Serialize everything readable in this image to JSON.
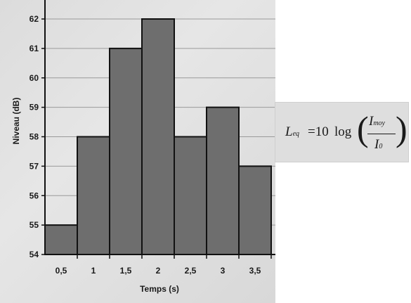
{
  "chart_data": {
    "type": "bar",
    "categories": [
      "0,5",
      "1",
      "1,5",
      "2",
      "2,5",
      "3",
      "3,5"
    ],
    "values": [
      55,
      58,
      61,
      62,
      58,
      59,
      57
    ],
    "xlabel": "Temps (s)",
    "ylabel": "Niveau (dB)",
    "ylim": [
      54,
      62
    ],
    "yticks": [
      "54",
      "55",
      "56",
      "57",
      "58",
      "59",
      "60",
      "61",
      "62"
    ],
    "grid": true,
    "bar_color": "#6e6e6e",
    "bar_edge_color": "#111111"
  },
  "formula": {
    "lhs": "L",
    "lhs_sub": "eq",
    "equals_coeff": "=10",
    "log": "log",
    "numerator": "I",
    "numerator_sub": "moy",
    "denominator": "I",
    "denominator_sub": "0",
    "paren_left": "(",
    "paren_right": ")"
  }
}
